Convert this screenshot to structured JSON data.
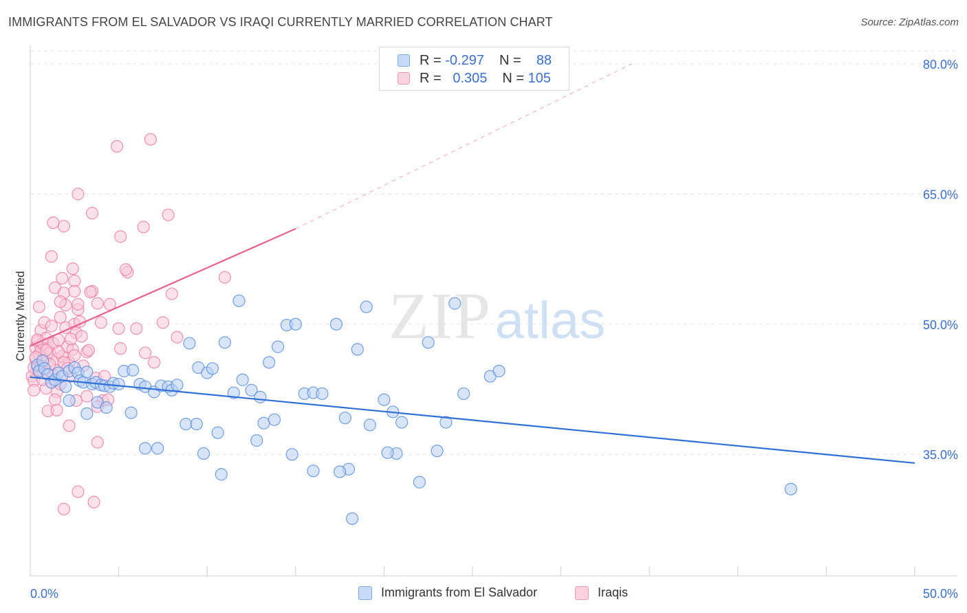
{
  "title": "IMMIGRANTS FROM EL SALVADOR VS IRAQI CURRENTLY MARRIED CORRELATION CHART",
  "source": "Source: ZipAtlas.com",
  "watermark": {
    "zip": "ZIP",
    "atlas": "atlas"
  },
  "legend": {
    "rows": [
      {
        "r_label": "R =",
        "r_value": "-0.297",
        "n_label": "N =",
        "n_value": "88",
        "color": "#7aa7e8"
      },
      {
        "r_label": "R =",
        "r_value": "0.305",
        "n_label": "N =",
        "n_value": "105",
        "color": "#f29ab4"
      }
    ]
  },
  "chart_data": {
    "type": "scatter",
    "title": "IMMIGRANTS FROM EL SALVADOR VS IRAQI CURRENTLY MARRIED CORRELATION CHART",
    "xlabel": "",
    "ylabel": "Currently Married",
    "xlim": [
      0,
      50
    ],
    "ylim": [
      21,
      81.5
    ],
    "x_tick_labels": [
      "0.0%",
      "50.0%"
    ],
    "y_ticks": [
      35,
      50,
      65,
      80
    ],
    "y_tick_labels": [
      "35.0%",
      "50.0%",
      "65.0%",
      "80.0%"
    ],
    "grid": true,
    "legend_position": "top-center",
    "series": [
      {
        "name": "Immigrants from El Salvador",
        "color": "#5b8fe0",
        "fill": "#b8d0f4",
        "trend": {
          "x": [
            0,
            50
          ],
          "y": [
            43.9,
            34.0
          ],
          "style": "solid"
        },
        "points": [
          [
            0.4,
            45.3
          ],
          [
            0.5,
            44.6
          ],
          [
            0.7,
            45.8
          ],
          [
            0.8,
            44.9
          ],
          [
            1.0,
            44.2
          ],
          [
            1.2,
            43.3
          ],
          [
            1.4,
            43.6
          ],
          [
            1.6,
            44.4
          ],
          [
            1.8,
            44.0
          ],
          [
            2.0,
            42.8
          ],
          [
            2.2,
            44.6
          ],
          [
            2.5,
            45.0
          ],
          [
            2.7,
            44.4
          ],
          [
            2.8,
            43.5
          ],
          [
            3.0,
            43.3
          ],
          [
            3.2,
            44.5
          ],
          [
            3.5,
            43.1
          ],
          [
            3.7,
            43.3
          ],
          [
            4.0,
            43.0
          ],
          [
            4.2,
            42.9
          ],
          [
            4.5,
            42.8
          ],
          [
            4.7,
            43.2
          ],
          [
            5.0,
            43.1
          ],
          [
            5.3,
            44.6
          ],
          [
            5.8,
            44.7
          ],
          [
            6.2,
            43.1
          ],
          [
            6.5,
            42.8
          ],
          [
            7.0,
            42.2
          ],
          [
            7.4,
            42.9
          ],
          [
            7.8,
            42.8
          ],
          [
            8.0,
            42.4
          ],
          [
            8.3,
            43.0
          ],
          [
            9.0,
            47.8
          ],
          [
            9.5,
            45.0
          ],
          [
            10.0,
            44.4
          ],
          [
            10.3,
            44.9
          ],
          [
            11.0,
            47.9
          ],
          [
            11.5,
            42.1
          ],
          [
            12.0,
            43.6
          ],
          [
            12.5,
            42.4
          ],
          [
            13.0,
            41.6
          ],
          [
            13.5,
            45.6
          ],
          [
            14.0,
            47.4
          ],
          [
            14.5,
            49.9
          ],
          [
            15.0,
            50.0
          ],
          [
            15.5,
            42.0
          ],
          [
            16.0,
            42.1
          ],
          [
            16.5,
            42.0
          ],
          [
            17.3,
            50.0
          ],
          [
            17.8,
            39.2
          ],
          [
            18.5,
            47.1
          ],
          [
            19.2,
            38.4
          ],
          [
            20.0,
            41.3
          ],
          [
            20.5,
            39.9
          ],
          [
            21.0,
            38.7
          ],
          [
            22.5,
            47.9
          ],
          [
            23.5,
            38.7
          ],
          [
            23.0,
            35.4
          ],
          [
            24.0,
            52.4
          ],
          [
            26.0,
            44.0
          ],
          [
            26.5,
            44.6
          ],
          [
            18.0,
            33.3
          ],
          [
            19.0,
            52.0
          ],
          [
            11.8,
            52.7
          ],
          [
            12.8,
            36.6
          ],
          [
            14.8,
            35.0
          ],
          [
            17.5,
            33.0
          ],
          [
            18.2,
            27.6
          ],
          [
            20.7,
            35.1
          ],
          [
            6.5,
            35.7
          ],
          [
            7.2,
            35.7
          ],
          [
            9.8,
            35.1
          ],
          [
            10.8,
            32.7
          ],
          [
            13.2,
            38.6
          ],
          [
            16.0,
            33.1
          ],
          [
            22.0,
            31.8
          ],
          [
            20.2,
            35.2
          ],
          [
            3.2,
            39.7
          ],
          [
            3.8,
            41.0
          ],
          [
            4.3,
            40.4
          ],
          [
            5.7,
            39.8
          ],
          [
            8.8,
            38.5
          ],
          [
            9.4,
            38.5
          ],
          [
            10.6,
            37.5
          ],
          [
            13.8,
            39.0
          ],
          [
            24.5,
            42.0
          ],
          [
            43.0,
            31.0
          ],
          [
            2.2,
            41.2
          ]
        ]
      },
      {
        "name": "Iraqis",
        "color": "#ef7fa3",
        "fill": "#f8c8d8",
        "trend": {
          "x": [
            0,
            15
          ],
          "y": [
            47.5,
            61.0
          ],
          "style": "solid",
          "extended": {
            "x": [
              15,
              34
            ],
            "y": [
              61.0,
              80.0
            ],
            "style": "dashed"
          }
        },
        "points": [
          [
            0.1,
            44.0
          ],
          [
            0.2,
            43.5
          ],
          [
            0.2,
            45.0
          ],
          [
            0.3,
            46.0
          ],
          [
            0.3,
            47.3
          ],
          [
            0.4,
            45.1
          ],
          [
            0.4,
            48.0
          ],
          [
            0.5,
            46.5
          ],
          [
            0.5,
            44.5
          ],
          [
            0.6,
            47.0
          ],
          [
            0.6,
            49.3
          ],
          [
            0.7,
            47.8
          ],
          [
            0.8,
            45.8
          ],
          [
            0.8,
            50.2
          ],
          [
            0.9,
            48.4
          ],
          [
            1.0,
            44.3
          ],
          [
            1.0,
            47.2
          ],
          [
            1.1,
            46.7
          ],
          [
            1.2,
            49.8
          ],
          [
            1.3,
            47.8
          ],
          [
            1.4,
            44.7
          ],
          [
            1.5,
            46.0
          ],
          [
            1.6,
            48.2
          ],
          [
            1.7,
            50.8
          ],
          [
            1.8,
            46.3
          ],
          [
            2.0,
            49.6
          ],
          [
            2.1,
            47.4
          ],
          [
            2.2,
            45.6
          ],
          [
            2.3,
            44.0
          ],
          [
            2.4,
            47.1
          ],
          [
            2.5,
            50.0
          ],
          [
            2.6,
            49.0
          ],
          [
            2.7,
            51.7
          ],
          [
            2.8,
            50.3
          ],
          [
            3.0,
            45.2
          ],
          [
            3.2,
            46.8
          ],
          [
            3.5,
            53.8
          ],
          [
            3.7,
            43.8
          ],
          [
            3.8,
            52.4
          ],
          [
            4.0,
            50.2
          ],
          [
            4.5,
            52.3
          ],
          [
            5.0,
            49.5
          ],
          [
            5.5,
            56.0
          ],
          [
            6.0,
            49.5
          ],
          [
            6.5,
            46.7
          ],
          [
            7.0,
            45.6
          ],
          [
            7.5,
            50.2
          ],
          [
            8.0,
            53.5
          ],
          [
            8.3,
            48.5
          ],
          [
            11.0,
            55.4
          ],
          [
            4.9,
            70.5
          ],
          [
            6.8,
            71.3
          ],
          [
            2.7,
            65.0
          ],
          [
            3.5,
            62.8
          ],
          [
            1.3,
            61.7
          ],
          [
            5.1,
            60.1
          ],
          [
            1.9,
            61.3
          ],
          [
            6.4,
            61.2
          ],
          [
            7.8,
            62.6
          ],
          [
            1.2,
            57.8
          ],
          [
            2.4,
            56.4
          ],
          [
            5.4,
            56.3
          ],
          [
            1.8,
            55.3
          ],
          [
            2.5,
            55.0
          ],
          [
            1.4,
            54.2
          ],
          [
            1.9,
            53.6
          ],
          [
            2.0,
            52.2
          ],
          [
            2.5,
            53.8
          ],
          [
            3.4,
            53.7
          ],
          [
            0.5,
            52.0
          ],
          [
            1.7,
            52.6
          ],
          [
            2.7,
            52.3
          ],
          [
            0.9,
            42.6
          ],
          [
            1.5,
            42.2
          ],
          [
            0.2,
            42.4
          ],
          [
            1.4,
            41.3
          ],
          [
            2.6,
            41.2
          ],
          [
            3.2,
            41.7
          ],
          [
            4.1,
            41.2
          ],
          [
            1.0,
            40.0
          ],
          [
            1.5,
            40.1
          ],
          [
            2.2,
            38.3
          ],
          [
            3.8,
            40.5
          ],
          [
            4.4,
            41.3
          ],
          [
            3.8,
            36.4
          ],
          [
            2.7,
            30.7
          ],
          [
            3.6,
            29.5
          ],
          [
            1.9,
            28.7
          ],
          [
            5.1,
            47.2
          ],
          [
            0.3,
            46.2
          ],
          [
            0.4,
            48.2
          ],
          [
            0.6,
            45.2
          ],
          [
            0.7,
            43.6
          ],
          [
            0.9,
            47.0
          ],
          [
            1.1,
            45.4
          ],
          [
            1.3,
            44.1
          ],
          [
            1.6,
            46.8
          ],
          [
            1.9,
            45.6
          ],
          [
            2.3,
            48.3
          ],
          [
            2.5,
            46.4
          ],
          [
            2.9,
            48.6
          ],
          [
            3.3,
            47.0
          ],
          [
            1.7,
            43.1
          ],
          [
            2.1,
            44.9
          ],
          [
            4.2,
            44.0
          ]
        ]
      }
    ]
  },
  "bottom_legend": [
    {
      "label": "Immigrants from El Salvador",
      "color": "#7aa7e8"
    },
    {
      "label": "Iraqis",
      "color": "#f29ab4"
    }
  ]
}
